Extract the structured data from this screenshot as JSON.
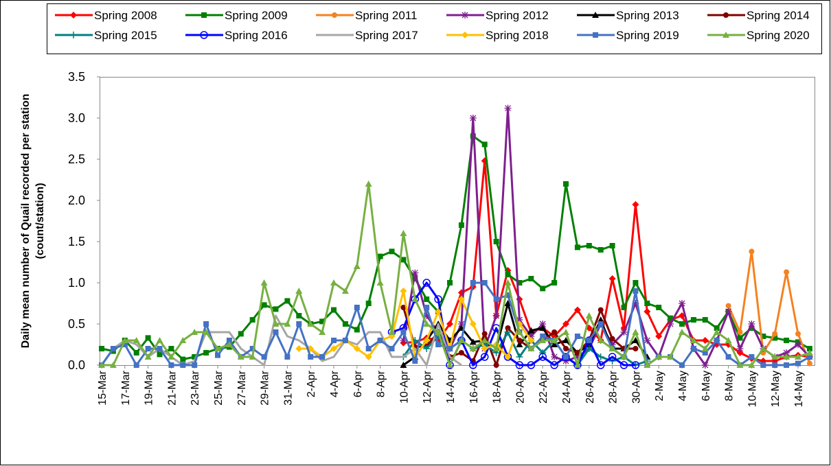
{
  "chart_data": {
    "type": "line",
    "y_label": [
      "Daily mean number of Quail recorded per station",
      "(count/station)"
    ],
    "categories": [
      "15-Mar",
      null,
      "17-Mar",
      null,
      "19-Mar",
      null,
      "21-Mar",
      null,
      "23-Mar",
      null,
      "25-Mar",
      null,
      "27-Mar",
      null,
      "29-Mar",
      null,
      "31-Mar",
      null,
      "2-Apr",
      null,
      "4-Apr",
      null,
      "6-Apr",
      null,
      "8-Apr",
      null,
      "10-Apr",
      null,
      "12-Apr",
      null,
      "14-Apr",
      null,
      "16-Apr",
      null,
      "18-Apr",
      null,
      "20-Apr",
      null,
      "22-Apr",
      null,
      "24-Apr",
      null,
      "26-Apr",
      null,
      "28-Apr",
      null,
      "30-Apr",
      null,
      "2-May",
      null,
      "4-May",
      null,
      "6-May",
      null,
      "8-May",
      null,
      "10-May",
      null,
      "12-May",
      null,
      "14-May",
      null
    ],
    "ylim": [
      0,
      3.5
    ],
    "yticks": [
      {
        "value": 0,
        "label": "0.0"
      },
      0.5,
      {
        "value": 1,
        "label": "1.0"
      },
      1.5,
      {
        "value": 2,
        "label": "2.0"
      },
      2.5,
      {
        "value": 3,
        "label": "3.0"
      },
      3.5
    ],
    "grid": false,
    "legend": "top",
    "series": [
      {
        "name": "Spring 2008",
        "color": "#ff0000",
        "marker": "diamond",
        "values": [
          null,
          null,
          null,
          null,
          null,
          null,
          null,
          null,
          null,
          null,
          null,
          null,
          null,
          null,
          null,
          null,
          null,
          null,
          null,
          null,
          null,
          null,
          null,
          null,
          null,
          null,
          0.27,
          0.28,
          0.33,
          0.3,
          0.5,
          0.88,
          0.95,
          2.48,
          0.6,
          1.15,
          0.8,
          0.4,
          0.45,
          0.35,
          0.5,
          0.67,
          0.45,
          0.3,
          1.05,
          0.45,
          1.95,
          0.65,
          0.35,
          0.55,
          0.6,
          0.3,
          0.3,
          0.25,
          0.25,
          0.15,
          0.08,
          0.05,
          0.05,
          0.1,
          0.12,
          0.1
        ]
      },
      {
        "name": "Spring 2009",
        "color": "#008000",
        "marker": "square",
        "values": [
          0.2,
          0.17,
          0.3,
          0.15,
          0.33,
          0.13,
          0.2,
          0.07,
          0.1,
          0.15,
          0.2,
          0.22,
          0.38,
          0.55,
          0.73,
          0.68,
          0.78,
          0.6,
          0.5,
          0.53,
          0.67,
          0.5,
          0.43,
          0.75,
          1.32,
          1.38,
          1.28,
          1.05,
          0.8,
          0.65,
          1.0,
          1.7,
          2.78,
          2.68,
          1.5,
          1.1,
          1.0,
          1.05,
          0.93,
          1.0,
          2.2,
          1.43,
          1.45,
          1.4,
          1.45,
          0.7,
          1.0,
          0.75,
          0.7,
          0.57,
          0.5,
          0.55,
          0.55,
          0.45,
          0.65,
          0.33,
          0.45,
          0.35,
          0.33,
          0.3,
          0.28,
          0.2
        ]
      },
      {
        "name": "Spring 2011",
        "color": "#f5821f",
        "marker": "circle",
        "values": [
          null,
          null,
          null,
          null,
          null,
          null,
          null,
          null,
          null,
          null,
          null,
          null,
          null,
          null,
          null,
          null,
          null,
          null,
          null,
          null,
          null,
          null,
          null,
          null,
          null,
          null,
          null,
          null,
          null,
          null,
          null,
          null,
          null,
          null,
          null,
          null,
          null,
          null,
          null,
          null,
          null,
          null,
          null,
          null,
          null,
          null,
          null,
          null,
          null,
          null,
          null,
          null,
          null,
          null,
          0.72,
          0.4,
          1.38,
          0.15,
          0.38,
          1.13,
          0.38,
          0.02
        ]
      },
      {
        "name": "Spring 2012",
        "color": "#7f1f8f",
        "marker": "star",
        "values": [
          null,
          null,
          null,
          null,
          null,
          null,
          null,
          null,
          null,
          null,
          null,
          null,
          null,
          null,
          null,
          null,
          null,
          null,
          null,
          null,
          null,
          null,
          null,
          null,
          null,
          null,
          0.3,
          1.12,
          0.6,
          0.4,
          0.2,
          0.5,
          3.0,
          0.2,
          0.6,
          3.12,
          0.55,
          0.35,
          0.5,
          0.1,
          0.05,
          0.1,
          0.2,
          0.5,
          0.25,
          0.4,
          0.75,
          0.3,
          0.1,
          0.5,
          0.75,
          0.2,
          0,
          0.3,
          0.65,
          0.2,
          0.5,
          0.2,
          0.1,
          0.15,
          0.25,
          0.1
        ]
      },
      {
        "name": "Spring 2013",
        "color": "#000000",
        "marker": "triangle",
        "values": [
          null,
          null,
          null,
          null,
          null,
          null,
          null,
          null,
          null,
          null,
          null,
          null,
          null,
          null,
          null,
          null,
          null,
          null,
          null,
          null,
          null,
          null,
          null,
          null,
          null,
          null,
          0,
          0.1,
          0.3,
          0.5,
          0.3,
          0.45,
          0.28,
          0.3,
          0.2,
          0.75,
          0.25,
          0.42,
          0.45,
          0.25,
          0.3,
          0.15,
          0.25,
          0.55,
          0.2,
          0.2,
          0.3,
          0.1,
          null,
          null,
          null,
          null,
          null,
          null,
          null,
          null,
          null,
          null,
          null,
          null,
          null,
          null
        ]
      },
      {
        "name": "Spring 2014",
        "color": "#800000",
        "marker": "circle",
        "values": [
          null,
          null,
          null,
          null,
          null,
          null,
          null,
          null,
          null,
          null,
          null,
          null,
          null,
          null,
          null,
          null,
          null,
          null,
          null,
          null,
          null,
          null,
          null,
          null,
          null,
          null,
          0.7,
          0.22,
          0.23,
          0.4,
          0.1,
          0.15,
          0.05,
          0.38,
          0,
          0.45,
          0.3,
          0.2,
          0.3,
          0.4,
          0.2,
          0.15,
          0.3,
          0.67,
          0.32,
          0.2,
          0.2,
          null,
          null,
          null,
          null,
          null,
          null,
          null,
          null,
          null,
          null,
          null,
          null,
          null,
          null,
          null
        ]
      },
      {
        "name": "Spring 2015",
        "color": "#008080",
        "marker": "plus",
        "values": [
          null,
          null,
          null,
          null,
          null,
          null,
          null,
          null,
          null,
          null,
          null,
          null,
          null,
          null,
          null,
          null,
          null,
          null,
          null,
          null,
          null,
          null,
          null,
          null,
          null,
          null,
          0.1,
          0.3,
          0.2,
          0.35,
          0.2,
          0.3,
          0.2,
          0.25,
          0.15,
          0.4,
          0.1,
          0.3,
          0.15,
          0.3,
          0.1,
          0,
          0.2,
          0.1,
          0.05,
          0.1,
          0,
          0.05,
          null,
          null,
          null,
          null,
          null,
          null,
          null,
          null,
          null,
          null,
          null,
          null,
          null,
          null
        ]
      },
      {
        "name": "Spring 2016",
        "color": "#0000ff",
        "marker": "open-circle",
        "values": [
          null,
          null,
          null,
          null,
          null,
          null,
          null,
          null,
          null,
          null,
          null,
          null,
          null,
          null,
          null,
          null,
          null,
          null,
          null,
          null,
          null,
          null,
          null,
          null,
          null,
          0.4,
          0.45,
          0.8,
          1.0,
          0.8,
          0,
          0.3,
          0,
          0.1,
          0.45,
          0.1,
          0,
          0,
          0.1,
          0,
          0.1,
          0,
          0.3,
          0,
          0.1,
          0,
          0,
          null,
          null,
          null,
          null,
          null,
          null,
          null,
          null,
          null,
          null,
          null,
          null,
          null,
          null,
          null
        ]
      },
      {
        "name": "Spring 2017",
        "color": "#a6a6a6",
        "marker": "none",
        "values": [
          0,
          0.2,
          0.3,
          0.25,
          0.1,
          0.2,
          0.1,
          0,
          0.05,
          0.4,
          0.4,
          0.4,
          0.2,
          0.1,
          0,
          0.6,
          0.35,
          0.3,
          0.2,
          0.05,
          0.1,
          0.3,
          0.25,
          0.4,
          0.4,
          0.1,
          0.1,
          0.2,
          0,
          0.5,
          0.1,
          0,
          null,
          null,
          null,
          null,
          null,
          null,
          null,
          null,
          null,
          null,
          null,
          null,
          null,
          null,
          null,
          null,
          null,
          null,
          null,
          null,
          null,
          null,
          null,
          null,
          null,
          null,
          null,
          null,
          null,
          null
        ]
      },
      {
        "name": "Spring 2018",
        "color": "#ffc000",
        "marker": "diamond",
        "values": [
          null,
          null,
          null,
          null,
          null,
          null,
          null,
          null,
          null,
          null,
          null,
          null,
          null,
          null,
          null,
          null,
          null,
          0.2,
          0.2,
          0.1,
          0.2,
          0.3,
          0.2,
          0.1,
          0.3,
          0.35,
          0.9,
          0.1,
          0.3,
          0.65,
          0.2,
          0.8,
          0.5,
          0.2,
          0.25,
          0.1,
          0.5,
          0.3,
          null,
          null,
          null,
          null,
          null,
          null,
          null,
          null,
          null,
          null,
          null,
          null,
          null,
          null,
          null,
          null,
          null,
          null,
          null,
          null,
          null,
          null,
          null,
          null
        ]
      },
      {
        "name": "Spring 2019",
        "color": "#4472c4",
        "marker": "square",
        "values": [
          0,
          0.2,
          0.25,
          0,
          0.2,
          0.2,
          0,
          0,
          0,
          0.5,
          0.12,
          0.3,
          0.1,
          0.2,
          0.1,
          0.4,
          0.1,
          0.5,
          0.1,
          0.1,
          0.3,
          0.3,
          0.7,
          0.2,
          0.3,
          0.2,
          0.4,
          0.05,
          0.7,
          0.25,
          0.2,
          0.3,
          1.0,
          1.0,
          0.8,
          0.85,
          0.4,
          0.2,
          0.35,
          0.3,
          0.1,
          0.35,
          0.3,
          0.5,
          0.2,
          0.1,
          0.9,
          0,
          0.1,
          0.1,
          0,
          0.2,
          0.15,
          0.3,
          0.1,
          0,
          0.1,
          0,
          0,
          0,
          0.02,
          0.1
        ]
      },
      {
        "name": "Spring 2020",
        "color": "#77b041",
        "marker": "triangle",
        "values": [
          0,
          0,
          0.3,
          0.3,
          0.1,
          0.3,
          0.1,
          0.3,
          0.4,
          0.4,
          0.2,
          0.25,
          0.1,
          0.1,
          1.0,
          0.5,
          0.5,
          0.9,
          0.5,
          0.4,
          1.0,
          0.9,
          1.2,
          2.2,
          1.0,
          0.4,
          1.6,
          0.8,
          0.5,
          0.4,
          0,
          0.3,
          0.2,
          0.3,
          0.2,
          1.0,
          0.4,
          0.2,
          0.3,
          0.3,
          0.4,
          0,
          0.6,
          0.3,
          0.2,
          0.1,
          0.4,
          0,
          0.1,
          0.1,
          0.4,
          0.3,
          0.2,
          0.4,
          0.3,
          0,
          0,
          0.2,
          0.1,
          0.1,
          0.1,
          0.15
        ]
      }
    ]
  }
}
